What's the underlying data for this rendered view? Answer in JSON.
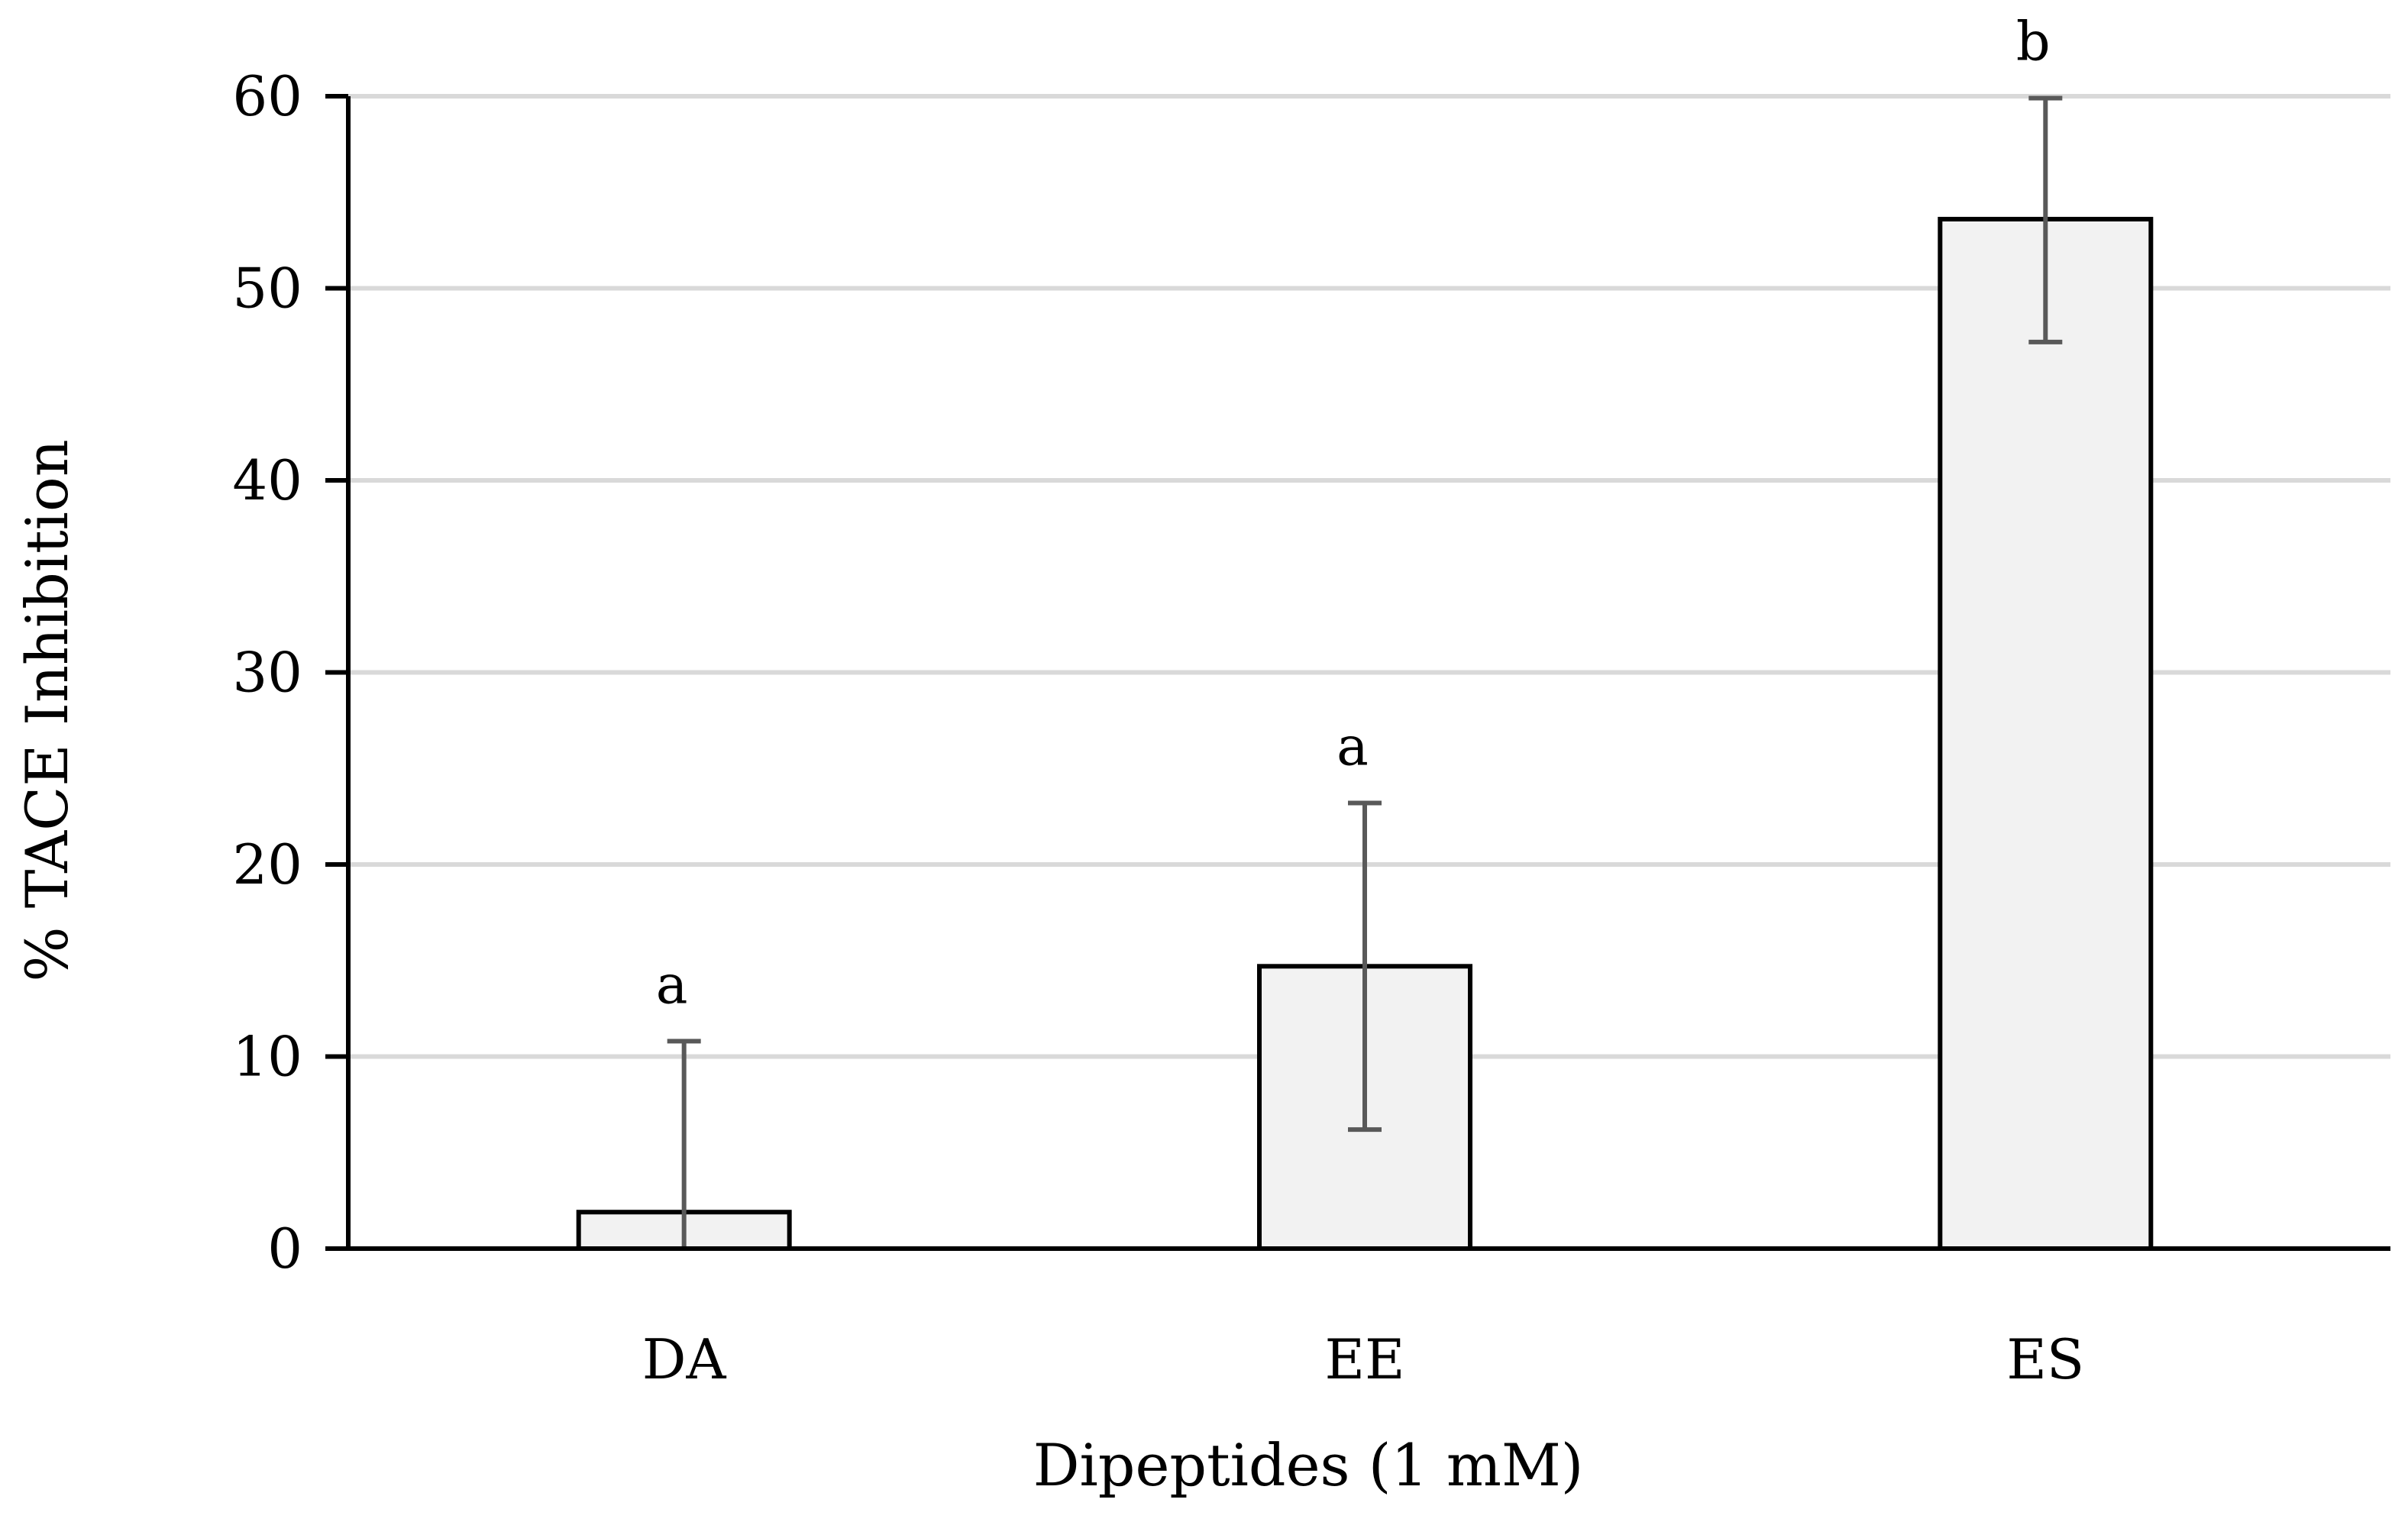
{
  "chart_data": {
    "type": "bar",
    "categories": [
      "DA",
      "EE",
      "ES"
    ],
    "values": [
      1.9,
      14.7,
      53.6
    ],
    "error_upper": [
      10.8,
      23.2,
      59.9
    ],
    "error_lower": [
      0.0,
      6.2,
      47.2
    ],
    "significance_labels": [
      "a",
      "a",
      "b"
    ],
    "title": "",
    "xlabel": "Dipeptides (1 mM)",
    "ylabel": "% TACE Inhibition",
    "ylim": [
      0,
      60
    ],
    "yticks": [
      0,
      10,
      20,
      30,
      40,
      50,
      60
    ],
    "grid": true,
    "legend": "none",
    "colors": {
      "bar_fill": "#f2f2f2",
      "bar_stroke": "#000000",
      "error_bar": "#595959",
      "gridline": "#d9d9d9"
    }
  }
}
